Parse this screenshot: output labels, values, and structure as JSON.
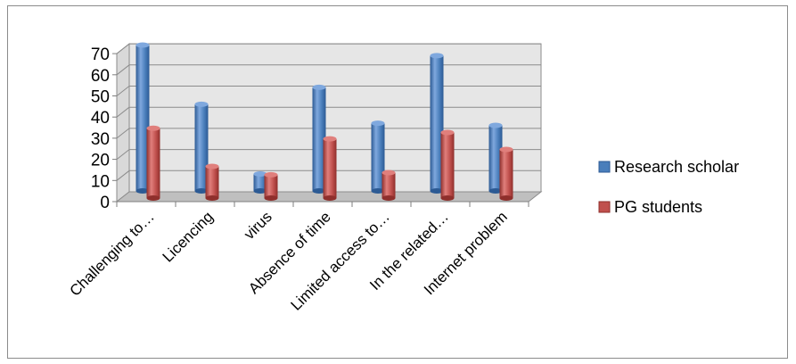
{
  "chart_data": {
    "type": "bar",
    "categories": [
      "Challenging to…",
      "Licencing",
      "virus",
      "Absence of time",
      "Limited access to…",
      "In the related…",
      "Internet problem"
    ],
    "series": [
      {
        "name": "Research scholar",
        "values": [
          69,
          41,
          8,
          49,
          32,
          64,
          31
        ]
      },
      {
        "name": "PG students",
        "values": [
          33,
          15,
          11,
          28,
          12,
          31,
          23
        ]
      }
    ],
    "yticks": [
      "0",
      "10",
      "20",
      "30",
      "40",
      "50",
      "60",
      "70"
    ],
    "ylim": [
      0,
      70
    ],
    "grid": true,
    "legend_position": "right",
    "colors": {
      "series": [
        "#4a7ebb",
        "#c0504d"
      ],
      "series_light": [
        "#7fa8de",
        "#e07f7c"
      ],
      "series_dark": [
        "#2c5a94",
        "#8f2f2c"
      ],
      "wall": "#e6e6e6",
      "floor": "#bfbfbf",
      "grid": "#8c8c8c"
    }
  }
}
